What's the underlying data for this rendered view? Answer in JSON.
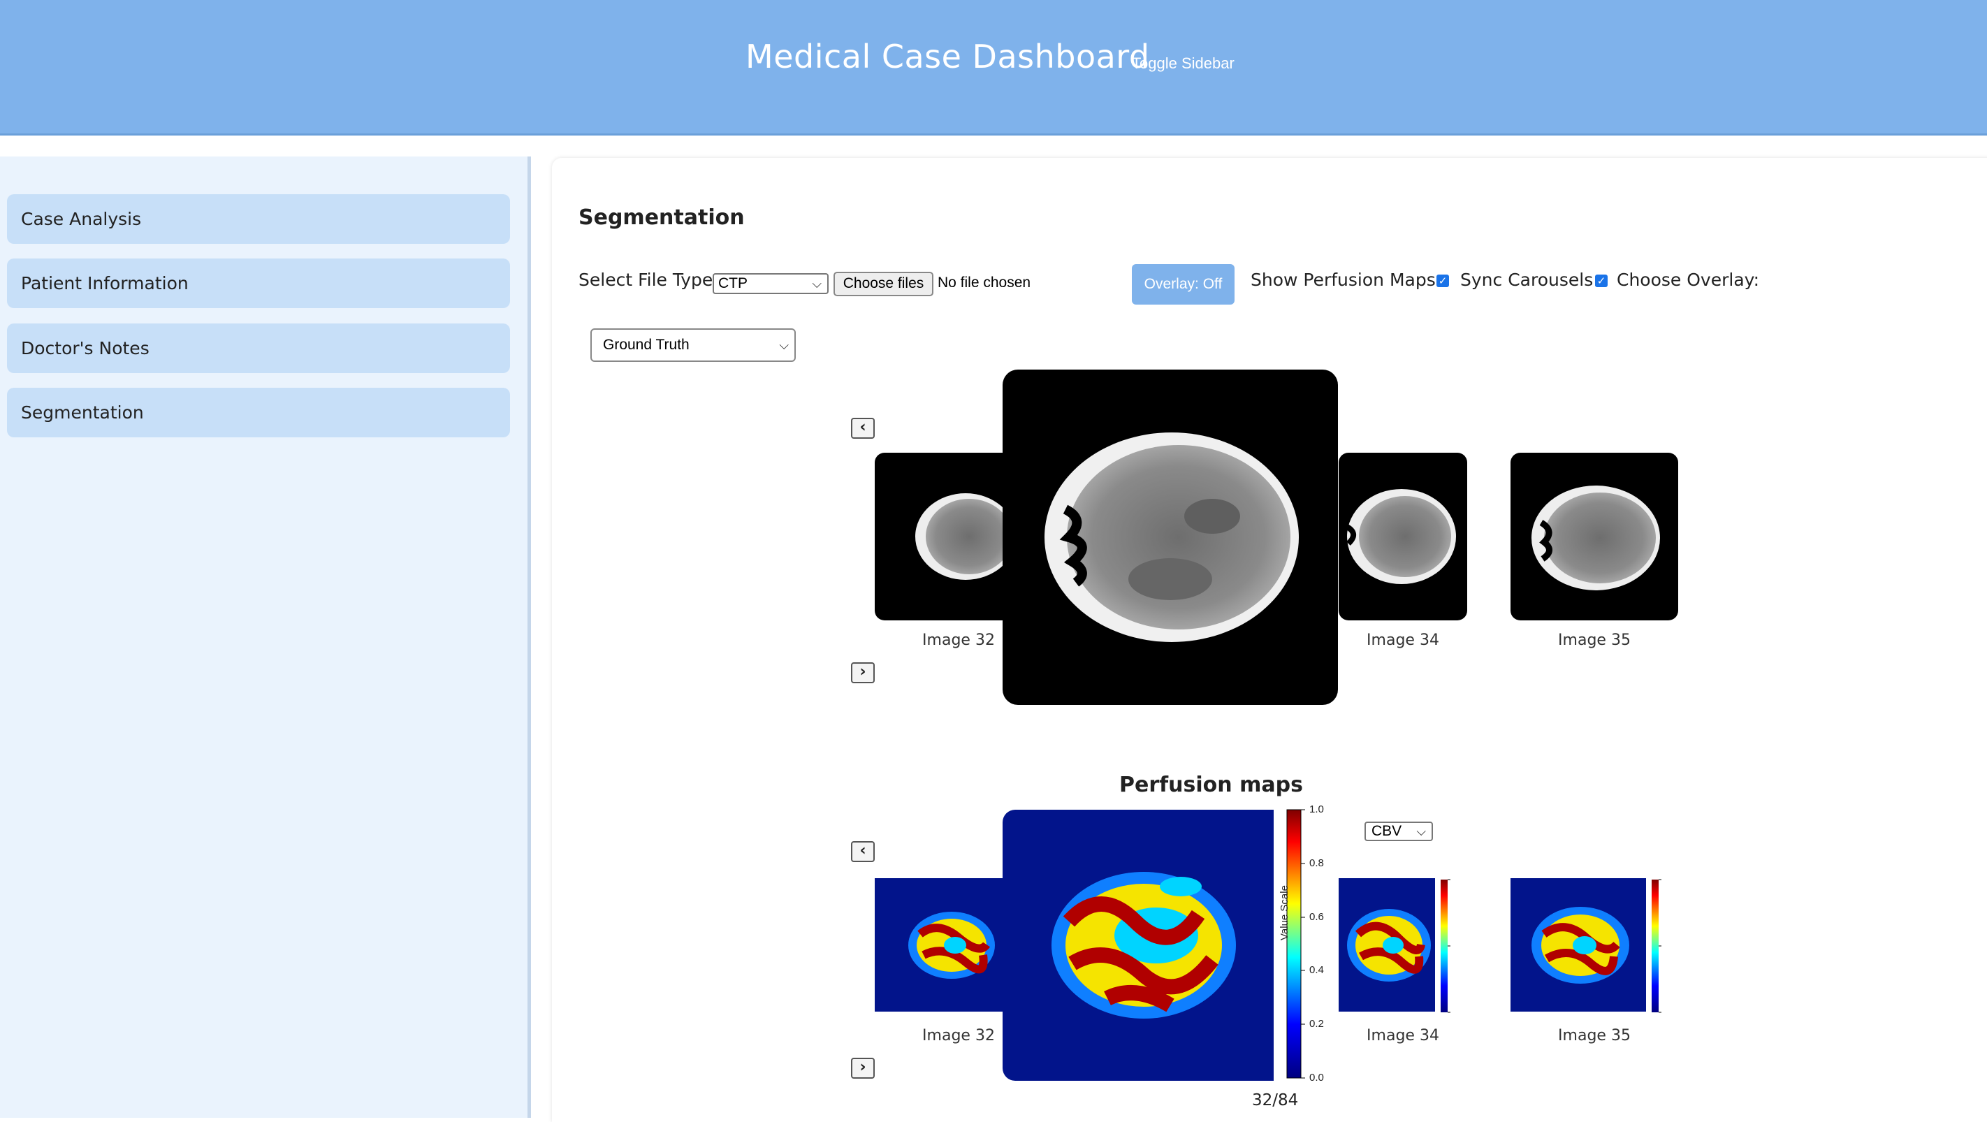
{
  "header": {
    "title": "Medical Case Dashboard",
    "toggle_label": "Toggle Sidebar"
  },
  "sidebar": {
    "items": [
      {
        "label": "Case Analysis"
      },
      {
        "label": "Patient Information"
      },
      {
        "label": "Doctor's Notes"
      },
      {
        "label": "Segmentation"
      }
    ]
  },
  "main": {
    "title": "Segmentation",
    "controls": {
      "file_type_label": "Select File Type:",
      "file_type_value": "CTP",
      "choose_files_label": "Choose files",
      "file_status": "No file chosen",
      "overlay_button": "Overlay: Off",
      "show_perfusion_label": "Show Perfusion Maps:",
      "sync_carousels_label": "Sync Carousels:",
      "choose_overlay_label": "Choose Overlay:",
      "overlay_select_value": "Ground Truth"
    },
    "carousel": {
      "prev_label": "‹",
      "next_label": "›",
      "captions": [
        "Image 32",
        "Image 34",
        "Image 35"
      ]
    },
    "perfusion": {
      "title": "Perfusion maps",
      "map_select_value": "CBV",
      "prev_label": "‹",
      "next_label": "›",
      "captions": [
        "Image 32",
        "Image 34",
        "Image 35"
      ],
      "colorbar_label": "Value Scale",
      "colorbar_ticks": [
        "1.0",
        "0.8",
        "0.6",
        "0.4",
        "0.2",
        "0.0"
      ],
      "counter": "32/84"
    }
  },
  "colors": {
    "header_bg": "#7fb2eb",
    "sidebar_item_bg": "#c7dff8",
    "map_bg": "#02148b"
  }
}
